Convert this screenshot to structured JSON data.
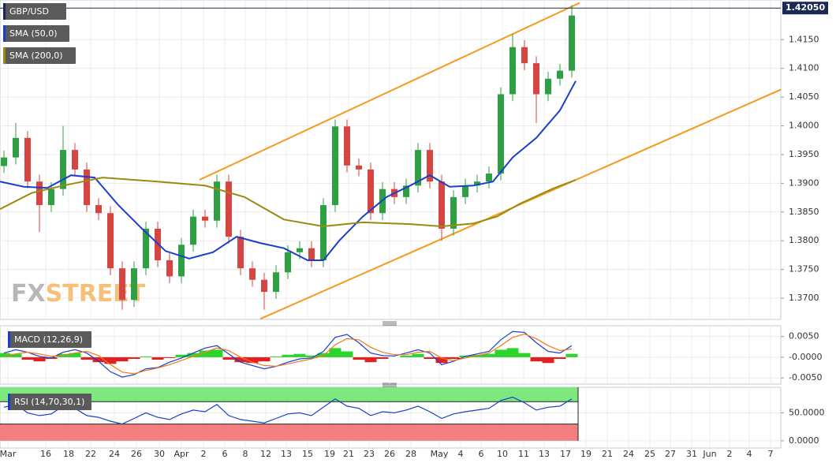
{
  "chart_data": [
    {
      "type": "candlestick",
      "title": "GBP/USD",
      "xlim": [
        0,
        99
      ],
      "ylim": [
        1.3663,
        1.4219
      ],
      "yticks": [
        {
          "value": 1.37,
          "label": "1.3700"
        },
        {
          "value": 1.375,
          "label": "1.3750"
        },
        {
          "value": 1.38,
          "label": "1.3800"
        },
        {
          "value": 1.385,
          "label": "1.3850"
        },
        {
          "value": 1.39,
          "label": "1.3900"
        },
        {
          "value": 1.395,
          "label": "1.3950"
        },
        {
          "value": 1.4,
          "label": "1.4000"
        },
        {
          "value": 1.405,
          "label": "1.4050"
        },
        {
          "value": 1.41,
          "label": "1.4100"
        },
        {
          "value": 1.415,
          "label": "1.4150"
        }
      ],
      "grid": true,
      "up_color": "#2ea043",
      "down_color": "#d64541",
      "x": [
        0.5,
        2,
        3.5,
        5,
        6.5,
        8,
        9.5,
        11,
        12.5,
        14,
        15.5,
        17,
        18.5,
        20,
        21.5,
        23,
        24.5,
        26,
        27.5,
        29,
        30.5,
        32,
        33.5,
        35,
        36.5,
        38,
        39.5,
        41,
        42.5,
        44,
        45.5,
        47,
        48.5,
        50,
        51.5,
        53,
        54.5,
        56,
        57.5,
        59,
        60.5,
        62,
        63.5,
        65,
        66.5,
        68,
        69.5,
        71,
        72.5
      ],
      "open": [
        1.393,
        1.3945,
        1.3979,
        1.3903,
        1.3862,
        1.389,
        1.3958,
        1.3924,
        1.3862,
        1.3848,
        1.3752,
        1.3697,
        1.3752,
        1.3821,
        1.3766,
        1.3738,
        1.3793,
        1.3842,
        1.3835,
        1.3903,
        1.3807,
        1.3752,
        1.3732,
        1.3711,
        1.3745,
        1.378,
        1.3787,
        1.3766,
        1.3862,
        1.3999,
        1.3931,
        1.3924,
        1.3848,
        1.389,
        1.3876,
        1.3896,
        1.3958,
        1.3903,
        1.3821,
        1.3876,
        1.3896,
        1.3903,
        1.3917,
        1.4055,
        1.4137,
        1.4109,
        1.4055,
        1.4082,
        1.4096
      ],
      "high": [
        1.3957,
        1.4005,
        1.3991,
        1.3915,
        1.3902,
        1.4,
        1.397,
        1.3936,
        1.3874,
        1.386,
        1.3764,
        1.3764,
        1.3833,
        1.3833,
        1.3778,
        1.3805,
        1.3854,
        1.3854,
        1.3915,
        1.3915,
        1.3819,
        1.3764,
        1.3744,
        1.3757,
        1.3792,
        1.3799,
        1.3799,
        1.3874,
        1.4011,
        1.4011,
        1.3943,
        1.3936,
        1.3902,
        1.3902,
        1.3908,
        1.397,
        1.397,
        1.3915,
        1.3888,
        1.3908,
        1.3915,
        1.3929,
        1.4067,
        1.416,
        1.4149,
        1.4121,
        1.4094,
        1.4108,
        1.421
      ],
      "low": [
        1.3918,
        1.3933,
        1.3891,
        1.3815,
        1.385,
        1.3878,
        1.3912,
        1.385,
        1.3836,
        1.374,
        1.368,
        1.3685,
        1.374,
        1.3754,
        1.3726,
        1.3726,
        1.3781,
        1.3823,
        1.3823,
        1.3795,
        1.374,
        1.372,
        1.368,
        1.3699,
        1.3733,
        1.3768,
        1.3754,
        1.3754,
        1.385,
        1.3919,
        1.3912,
        1.3836,
        1.3836,
        1.3864,
        1.3864,
        1.3884,
        1.3891,
        1.38,
        1.3809,
        1.3864,
        1.3884,
        1.3891,
        1.3905,
        1.4043,
        1.4097,
        1.4005,
        1.4043,
        1.407,
        1.4084
      ],
      "close": [
        1.3945,
        1.3979,
        1.3903,
        1.3862,
        1.389,
        1.3958,
        1.3924,
        1.3862,
        1.3848,
        1.3752,
        1.3697,
        1.3752,
        1.3821,
        1.3766,
        1.3738,
        1.3793,
        1.3842,
        1.3835,
        1.3903,
        1.3807,
        1.3752,
        1.3732,
        1.3711,
        1.3745,
        1.378,
        1.3787,
        1.3766,
        1.3862,
        1.3999,
        1.3931,
        1.3924,
        1.3848,
        1.389,
        1.3876,
        1.3896,
        1.3958,
        1.3903,
        1.3821,
        1.3876,
        1.3896,
        1.3903,
        1.3917,
        1.4055,
        1.4137,
        1.4109,
        1.4055,
        1.4082,
        1.4096,
        1.4192
      ],
      "series": [
        {
          "name": "SMA (50,0)",
          "color": "#1a3fcc",
          "x": [
            0,
            3,
            6,
            9,
            12,
            15,
            18,
            21,
            24,
            27,
            30,
            33,
            36,
            39,
            41,
            43,
            46,
            49,
            52,
            54.5,
            57,
            60,
            62.5,
            65,
            68,
            71,
            73
          ],
          "values": [
            1.3903,
            1.3894,
            1.3892,
            1.3914,
            1.391,
            1.3862,
            1.3821,
            1.3782,
            1.3769,
            1.378,
            1.3807,
            1.3796,
            1.3787,
            1.3766,
            1.3766,
            1.38,
            1.3842,
            1.3876,
            1.3896,
            1.3914,
            1.3894,
            1.3896,
            1.3903,
            1.3945,
            1.3979,
            1.4027,
            1.4078
          ]
        },
        {
          "name": "SMA (200,0)",
          "color": "#9a8a10",
          "x": [
            0,
            4,
            8,
            13,
            20,
            26,
            31,
            36,
            41,
            46,
            52,
            56,
            60,
            63,
            66,
            70,
            73
          ],
          "values": [
            1.3855,
            1.3883,
            1.3896,
            1.391,
            1.3903,
            1.3896,
            1.3876,
            1.3837,
            1.3825,
            1.3832,
            1.3829,
            1.3825,
            1.383,
            1.3842,
            1.3865,
            1.389,
            1.3906
          ]
        }
      ],
      "trendlines": [
        {
          "color": "#f59a1b",
          "x": [
            25.3,
            73.5
          ],
          "values": [
            1.3906,
            1.4214
          ]
        },
        {
          "color": "#f59a1b",
          "x": [
            33,
            99
          ],
          "values": [
            1.3664,
            1.4063
          ]
        }
      ],
      "last_price": {
        "value": 1.4205,
        "label": "1.42050"
      },
      "watermark": {
        "prefix": "FX",
        "suffix": "STREET"
      }
    },
    {
      "type": "macd",
      "title": "MACD (12,26,9)",
      "xlim": [
        0,
        99
      ],
      "ylim": [
        -0.0065,
        0.0076
      ],
      "yticks": [
        {
          "value": 0.005,
          "label": "0.0050"
        },
        {
          "value": 0,
          "label": "-0.0000"
        },
        {
          "value": -0.005,
          "label": "-0.0050"
        }
      ],
      "x": [
        0.5,
        2,
        3.5,
        5,
        6.5,
        8,
        9.5,
        11,
        12.5,
        14,
        15.5,
        17,
        18.5,
        20,
        21.5,
        23,
        24.5,
        26,
        27.5,
        29,
        30.5,
        32,
        33.5,
        35,
        36.5,
        38,
        39.5,
        41,
        42.5,
        44,
        45.5,
        47,
        48.5,
        50,
        51.5,
        53,
        54.5,
        56,
        57.5,
        59,
        60.5,
        62,
        63.5,
        65,
        66.5,
        68,
        69.5,
        71,
        72.5
      ],
      "histogram": {
        "up_color": "#2bd52b",
        "down_color": "#e52020",
        "values": [
          0.001,
          0.0008,
          -0.0006,
          -0.001,
          -0.0004,
          0.0008,
          0.001,
          -0.0006,
          -0.0012,
          -0.0016,
          -0.001,
          -0.0004,
          0.0002,
          -0.0006,
          -0.0002,
          0.0006,
          0.001,
          0.0016,
          0.0018,
          -0.0006,
          -0.0012,
          -0.0014,
          -0.001,
          0.0002,
          0.0006,
          0.0008,
          0.0004,
          0.001,
          0.0022,
          0.0014,
          -0.0006,
          -0.0012,
          -0.0004,
          0,
          0.0004,
          0.0008,
          -0.0004,
          -0.0014,
          -0.0004,
          0.0004,
          0.0006,
          0.0008,
          0.0018,
          0.0022,
          0.001,
          -0.001,
          -0.0014,
          -0.0004,
          0.0008
        ]
      },
      "macd_line": {
        "color": "#1a3fcc",
        "values": [
          0.001,
          0.0018,
          0.0012,
          0.0002,
          -0.0002,
          0.0012,
          0.0018,
          0.001,
          -0.001,
          -0.0035,
          -0.0048,
          -0.0042,
          -0.0028,
          -0.0025,
          -0.0012,
          -0.0002,
          0.001,
          0.0022,
          0.0028,
          0.0008,
          -0.0012,
          -0.002,
          -0.0028,
          -0.0022,
          -0.0012,
          -0.0004,
          -0.0002,
          0.0014,
          0.0048,
          0.0055,
          0.0035,
          0.001,
          0.0004,
          0.0003,
          0.001,
          0.0018,
          0.001,
          -0.0018,
          -0.001,
          0.0002,
          0.0008,
          0.0014,
          0.0042,
          0.0062,
          0.006,
          0.0035,
          0.0014,
          0.001,
          0.0028
        ]
      },
      "signal_line": {
        "color": "#f07a1a",
        "values": [
          0.0002,
          0.0008,
          0.0012,
          0.0008,
          0.0002,
          0.0004,
          0.001,
          0.0014,
          0.0004,
          -0.0018,
          -0.0036,
          -0.004,
          -0.0032,
          -0.0026,
          -0.0018,
          -0.0008,
          0.0002,
          0.0012,
          0.0022,
          0.0016,
          0,
          -0.0012,
          -0.002,
          -0.0022,
          -0.0016,
          -0.001,
          -0.0004,
          0.0004,
          0.003,
          0.0045,
          0.0042,
          0.0024,
          0.0012,
          0.0006,
          0.0006,
          0.0012,
          0.0014,
          -0.0002,
          -0.0008,
          -0.0002,
          0.0004,
          0.001,
          0.0028,
          0.0048,
          0.0056,
          0.0045,
          0.0028,
          0.0016,
          0.002
        ]
      }
    },
    {
      "type": "rsi",
      "title": "RSI (14,70,30,1)",
      "xlim": [
        0,
        99
      ],
      "ylim": [
        -12.9,
        95.7
      ],
      "yticks": [
        {
          "value": 50,
          "label": "50.0000"
        },
        {
          "value": 0,
          "label": "0.0000"
        }
      ],
      "overbought": 70,
      "oversold": 30,
      "overbought_color": "#7ee87e",
      "oversold_color": "#f47f7f",
      "color": "#1a3fcc",
      "x": [
        0.5,
        2,
        3.5,
        5,
        6.5,
        8,
        9.5,
        11,
        12.5,
        14,
        15.5,
        17,
        18.5,
        20,
        21.5,
        23,
        24.5,
        26,
        27.5,
        29,
        30.5,
        32,
        33.5,
        35,
        36.5,
        38,
        39.5,
        41,
        42.5,
        44,
        45.5,
        47,
        48.5,
        50,
        51.5,
        53,
        54.5,
        56,
        57.5,
        59,
        60.5,
        62,
        63.5,
        65,
        66.5,
        68,
        69.5,
        71,
        72.5
      ],
      "values": [
        60,
        65,
        50,
        45,
        48,
        62,
        58,
        45,
        42,
        35,
        30,
        40,
        50,
        42,
        38,
        48,
        55,
        52,
        65,
        45,
        38,
        35,
        32,
        40,
        48,
        50,
        45,
        60,
        75,
        62,
        58,
        45,
        52,
        50,
        55,
        62,
        52,
        40,
        48,
        52,
        55,
        58,
        72,
        78,
        68,
        55,
        60,
        62,
        75
      ],
      "xticks": [
        {
          "value": 1.0,
          "label": "Mar"
        },
        {
          "value": 5.8,
          "label": "16"
        },
        {
          "value": 8.7,
          "label": "18"
        },
        {
          "value": 11.5,
          "label": "22"
        },
        {
          "value": 14.5,
          "label": "24"
        },
        {
          "value": 17.3,
          "label": "26"
        },
        {
          "value": 20.2,
          "label": "30"
        },
        {
          "value": 23.0,
          "label": "Apr"
        },
        {
          "value": 25.8,
          "label": "2"
        },
        {
          "value": 28.5,
          "label": "6"
        },
        {
          "value": 31.1,
          "label": "8"
        },
        {
          "value": 33.7,
          "label": "12"
        },
        {
          "value": 36.3,
          "label": "13"
        },
        {
          "value": 39.0,
          "label": "15"
        },
        {
          "value": 41.8,
          "label": "19"
        },
        {
          "value": 44.2,
          "label": "21"
        },
        {
          "value": 46.8,
          "label": "23"
        },
        {
          "value": 49.4,
          "label": "26"
        },
        {
          "value": 52.1,
          "label": "28"
        },
        {
          "value": 55.7,
          "label": "May"
        },
        {
          "value": 58.4,
          "label": "4"
        },
        {
          "value": 61.0,
          "label": "6"
        },
        {
          "value": 63.7,
          "label": "10"
        },
        {
          "value": 66.4,
          "label": "11"
        },
        {
          "value": 69.0,
          "label": "13"
        },
        {
          "value": 71.7,
          "label": "17"
        },
        {
          "value": 74.3,
          "label": "19"
        },
        {
          "value": 77.0,
          "label": "21"
        },
        {
          "value": 79.7,
          "label": "24"
        },
        {
          "value": 82.4,
          "label": "25"
        },
        {
          "value": 85.0,
          "label": "27"
        },
        {
          "value": 87.7,
          "label": "31"
        },
        {
          "value": 90.0,
          "label": "Jun"
        },
        {
          "value": 92.5,
          "label": "2"
        },
        {
          "value": 95.0,
          "label": "4"
        },
        {
          "value": 97.7,
          "label": "7"
        }
      ]
    }
  ]
}
